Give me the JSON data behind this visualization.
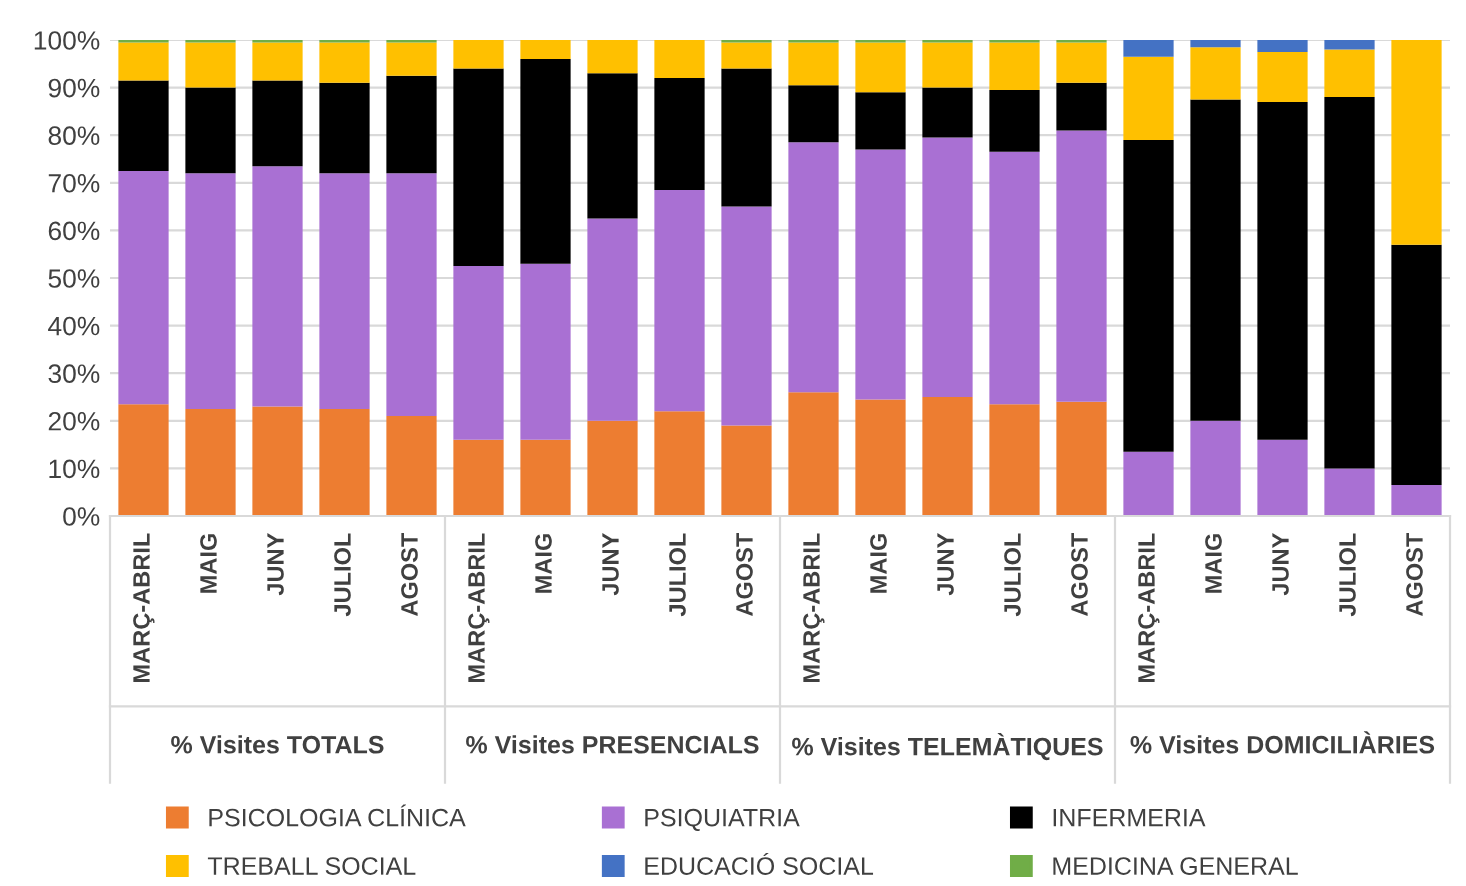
{
  "chart_data": {
    "type": "bar",
    "stacked": true,
    "categories": [
      "MARÇ-ABRIL",
      "MAIG",
      "JUNY",
      "JULIOL",
      "AGOST",
      "MARÇ-ABRIL",
      "MAIG",
      "JUNY",
      "JULIOL",
      "AGOST",
      "MARÇ-ABRIL",
      "MAIG",
      "JUNY",
      "JULIOL",
      "AGOST",
      "MARÇ-ABRIL",
      "MAIG",
      "JUNY",
      "JULIOL",
      "AGOST"
    ],
    "annotations": [
      "% Visites TOTALS",
      "% Visites PRESENCIALS",
      "% Visites TELEMÀTIQUES",
      "% Visites DOMICILIÀRIES"
    ],
    "series": [
      {
        "name": "PSICOLOGIA CLÍNICA",
        "color": "#ed7d31",
        "values": [
          23.5,
          22.5,
          23,
          22.5,
          21,
          16,
          16,
          20,
          22,
          19,
          26,
          24.5,
          25,
          23.5,
          24,
          0,
          0,
          0,
          0,
          0
        ]
      },
      {
        "name": "PSIQUIATRIA",
        "color": "#a970d3",
        "values": [
          49,
          49.5,
          50.5,
          49.5,
          51,
          36.5,
          37,
          42.5,
          46.5,
          46,
          52.5,
          52.5,
          54.5,
          53,
          57,
          13.5,
          20,
          16,
          10,
          6.5
        ]
      },
      {
        "name": "INFERMERIA",
        "color": "#000000",
        "values": [
          19,
          18,
          18,
          19,
          20.5,
          41.5,
          43,
          30.5,
          23.5,
          29,
          12,
          12,
          10.5,
          13,
          10,
          65.5,
          67.5,
          71,
          78,
          50.5
        ]
      },
      {
        "name": "TREBALL SOCIAL",
        "color": "#ffc000",
        "values": [
          8,
          9.5,
          8,
          8.5,
          7,
          6,
          4,
          7,
          8,
          5.5,
          9,
          10.5,
          9.5,
          10,
          8.5,
          17.5,
          11,
          10.5,
          10,
          43
        ]
      },
      {
        "name": "EDUCACIÓ SOCIAL",
        "color": "#4472c4",
        "values": [
          0,
          0,
          0,
          0,
          0,
          0,
          0,
          0,
          0,
          0,
          0,
          0,
          0,
          0,
          0,
          3.5,
          1.5,
          2.5,
          2,
          0
        ]
      },
      {
        "name": "MEDICINA GENERAL",
        "color": "#70ad47",
        "values": [
          0.5,
          0.5,
          0.5,
          0.5,
          0.5,
          0,
          0,
          0,
          0,
          0.5,
          0.5,
          0.5,
          0.5,
          0.5,
          0.5,
          0,
          0,
          0,
          0,
          0
        ]
      }
    ],
    "ylim": [
      0,
      100
    ],
    "yticks": [
      {
        "value": 0,
        "label": "0%"
      },
      {
        "value": 10,
        "label": "10%"
      },
      {
        "value": 20,
        "label": "20%"
      },
      {
        "value": 30,
        "label": "30%"
      },
      {
        "value": 40,
        "label": "40%"
      },
      {
        "value": 50,
        "label": "50%"
      },
      {
        "value": 60,
        "label": "60%"
      },
      {
        "value": 70,
        "label": "70%"
      },
      {
        "value": 80,
        "label": "80%"
      },
      {
        "value": 90,
        "label": "90%"
      },
      {
        "value": 100,
        "label": "100%"
      }
    ],
    "grid": "y",
    "legend": "bottom"
  }
}
